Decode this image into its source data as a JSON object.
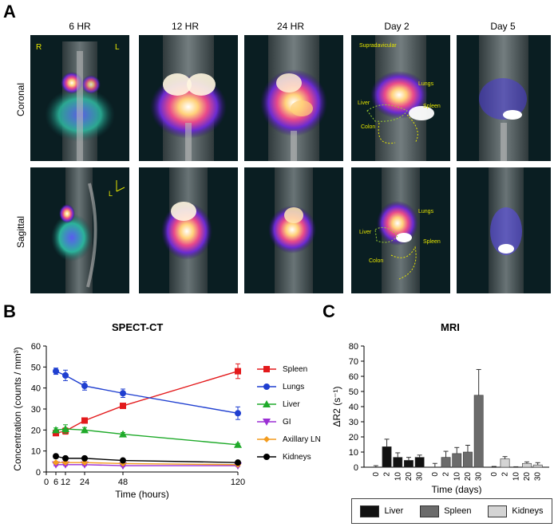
{
  "panel_a": {
    "letter": "A",
    "columns": [
      "6 HR",
      "12 HR",
      "24 HR",
      "Day 2",
      "Day 5"
    ],
    "rows": [
      "Coronal",
      "Sagittal"
    ],
    "orientation": {
      "right": "R",
      "left": "L",
      "axis": "L"
    },
    "annotations_coronal": [
      "Supradavicular",
      "Lungs",
      "Spleen",
      "Liver",
      "Colon"
    ],
    "annotations_sagittal": [
      "Lungs",
      "Liver",
      "Spleen",
      "Colon"
    ]
  },
  "panel_b": {
    "letter": "B"
  },
  "panel_c": {
    "letter": "C"
  },
  "chart_data": [
    {
      "type": "line",
      "title": "SPECT-CT",
      "xlabel": "Time (hours)",
      "ylabel": "Concentration (counts / mm³)",
      "x": [
        6,
        12,
        24,
        48,
        120
      ],
      "xticks": [
        "0",
        "6",
        "12",
        "24",
        "48",
        "120"
      ],
      "yticks": [
        "0",
        "10",
        "20",
        "30",
        "40",
        "50",
        "60"
      ],
      "xlim": [
        0,
        120
      ],
      "ylim": [
        0,
        60
      ],
      "series": [
        {
          "name": "Spleen",
          "color": "#e31a1c",
          "marker": "square",
          "values": [
            18.5,
            19.5,
            24.5,
            31.5,
            48
          ],
          "errors": [
            1.0,
            1.5,
            0.8,
            1.0,
            3.5
          ]
        },
        {
          "name": "Lungs",
          "color": "#1f3fd0",
          "marker": "circle",
          "values": [
            48,
            46,
            41,
            37.5,
            28
          ],
          "errors": [
            1.5,
            2.5,
            2.0,
            2.0,
            3.0
          ]
        },
        {
          "name": "Liver",
          "color": "#1faa2a",
          "marker": "triangle",
          "values": [
            20,
            20.5,
            20,
            18,
            13
          ],
          "errors": [
            1.0,
            2.0,
            1.2,
            0.8,
            0.6
          ]
        },
        {
          "name": "GI",
          "color": "#9b2fd4",
          "marker": "triangle-down",
          "values": [
            3.5,
            3.5,
            3.5,
            3.0,
            3.0
          ],
          "errors": [
            0.5,
            0.5,
            0.5,
            0.4,
            0.4
          ]
        },
        {
          "name": "Axillary LN",
          "color": "#f39c1f",
          "marker": "diamond",
          "values": [
            4.5,
            4.5,
            4.5,
            4.0,
            3.5
          ],
          "errors": [
            0.5,
            0.5,
            0.5,
            0.4,
            0.4
          ]
        },
        {
          "name": "Kidneys",
          "color": "#000000",
          "marker": "circle",
          "values": [
            7.5,
            6.5,
            6.5,
            5.5,
            4.5
          ],
          "errors": [
            0.5,
            0.5,
            0.5,
            0.4,
            0.4
          ]
        }
      ]
    },
    {
      "type": "bar",
      "title": "MRI",
      "xlabel": "Time (days)",
      "ylabel": "ΔR2 (s⁻¹)",
      "categories": [
        "0",
        "2",
        "10",
        "20",
        "30"
      ],
      "yticks": [
        "0",
        "10",
        "20",
        "30",
        "40",
        "50",
        "60",
        "70",
        "80"
      ],
      "ylim": [
        0,
        80
      ],
      "series": [
        {
          "name": "Liver",
          "color": "#111111",
          "values": [
            0,
            13.5,
            6.5,
            4.5,
            6.5
          ],
          "errors": [
            1.0,
            5.0,
            3.0,
            2.0,
            1.5
          ]
        },
        {
          "name": "Spleen",
          "color": "#6b6b6b",
          "values": [
            0,
            6.5,
            9,
            10,
            47.5
          ],
          "errors": [
            2.5,
            4.0,
            4.0,
            4.5,
            17.0
          ]
        },
        {
          "name": "Kidneys",
          "color": "#d4d4d4",
          "values": [
            0,
            5.5,
            0,
            2.5,
            1.5
          ],
          "errors": [
            0.5,
            1.5,
            0.3,
            1.0,
            1.5
          ]
        }
      ]
    }
  ]
}
